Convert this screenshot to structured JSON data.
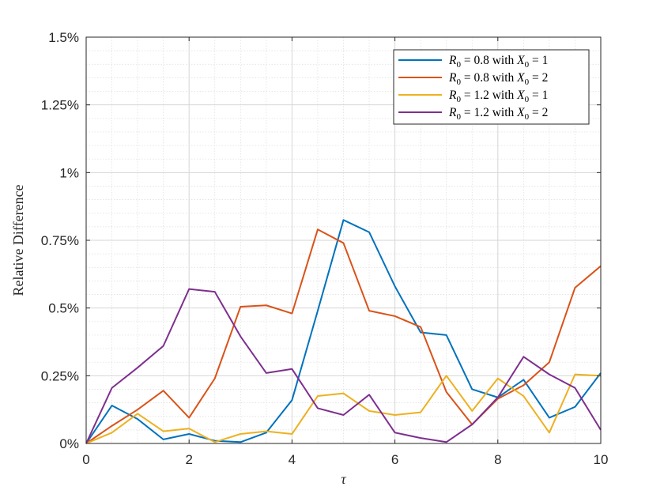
{
  "chart_data": {
    "type": "line",
    "xlabel": "τ",
    "ylabel": "Relative Difference",
    "xlim": [
      0,
      10
    ],
    "ylim": [
      0,
      1.5
    ],
    "x_ticks": [
      0,
      2,
      4,
      6,
      8,
      10
    ],
    "x_tick_labels": [
      "0",
      "2",
      "4",
      "6",
      "8",
      "10"
    ],
    "y_ticks": [
      0,
      0.25,
      0.5,
      0.75,
      1,
      1.25,
      1.5
    ],
    "y_tick_labels": [
      "0%",
      "0.25%",
      "0.5%",
      "0.75%",
      "1%",
      "1.25%",
      "1.5%"
    ],
    "y_unit": "%",
    "grid": true,
    "minor_grid": true,
    "legend_position": "top-right",
    "x": [
      0,
      0.5,
      1,
      1.5,
      2,
      2.5,
      3,
      3.5,
      4,
      4.5,
      5,
      5.5,
      6,
      6.5,
      7,
      7.5,
      8,
      8.5,
      9,
      9.5,
      10
    ],
    "series": [
      {
        "legend": {
          "r_var": "R",
          "r_sub": "0",
          "r_val": "0.8",
          "with": "with",
          "x_var": "X",
          "x_sub": "0",
          "x_val": "1"
        },
        "color": "#0072BD",
        "values": [
          0.0,
          0.14,
          0.09,
          0.015,
          0.035,
          0.01,
          0.005,
          0.04,
          0.16,
          0.49,
          0.825,
          0.78,
          0.58,
          0.41,
          0.4,
          0.2,
          0.17,
          0.235,
          0.095,
          0.135,
          0.26
        ]
      },
      {
        "legend": {
          "r_var": "R",
          "r_sub": "0",
          "r_val": "0.8",
          "with": "with",
          "x_var": "X",
          "x_sub": "0",
          "x_val": "2"
        },
        "color": "#D95319",
        "values": [
          0.0,
          0.065,
          0.125,
          0.195,
          0.095,
          0.24,
          0.505,
          0.51,
          0.48,
          0.79,
          0.74,
          0.49,
          0.47,
          0.43,
          0.19,
          0.07,
          0.165,
          0.215,
          0.3,
          0.575,
          0.655
        ]
      },
      {
        "legend": {
          "r_var": "R",
          "r_sub": "0",
          "r_val": "1.2",
          "with": "with",
          "x_var": "X",
          "x_sub": "0",
          "x_val": "1"
        },
        "color": "#EDB120",
        "values": [
          0.0,
          0.04,
          0.11,
          0.045,
          0.055,
          0.005,
          0.035,
          0.045,
          0.035,
          0.175,
          0.185,
          0.12,
          0.105,
          0.115,
          0.25,
          0.12,
          0.24,
          0.175,
          0.04,
          0.255,
          0.25
        ]
      },
      {
        "legend": {
          "r_var": "R",
          "r_sub": "0",
          "r_val": "1.2",
          "with": "with",
          "x_var": "X",
          "x_sub": "0",
          "x_val": "2"
        },
        "color": "#7E2F8E",
        "values": [
          0.0,
          0.205,
          0.28,
          0.36,
          0.57,
          0.56,
          0.395,
          0.26,
          0.275,
          0.13,
          0.105,
          0.18,
          0.04,
          0.02,
          0.005,
          0.07,
          0.17,
          0.32,
          0.255,
          0.205,
          0.05
        ]
      }
    ]
  }
}
